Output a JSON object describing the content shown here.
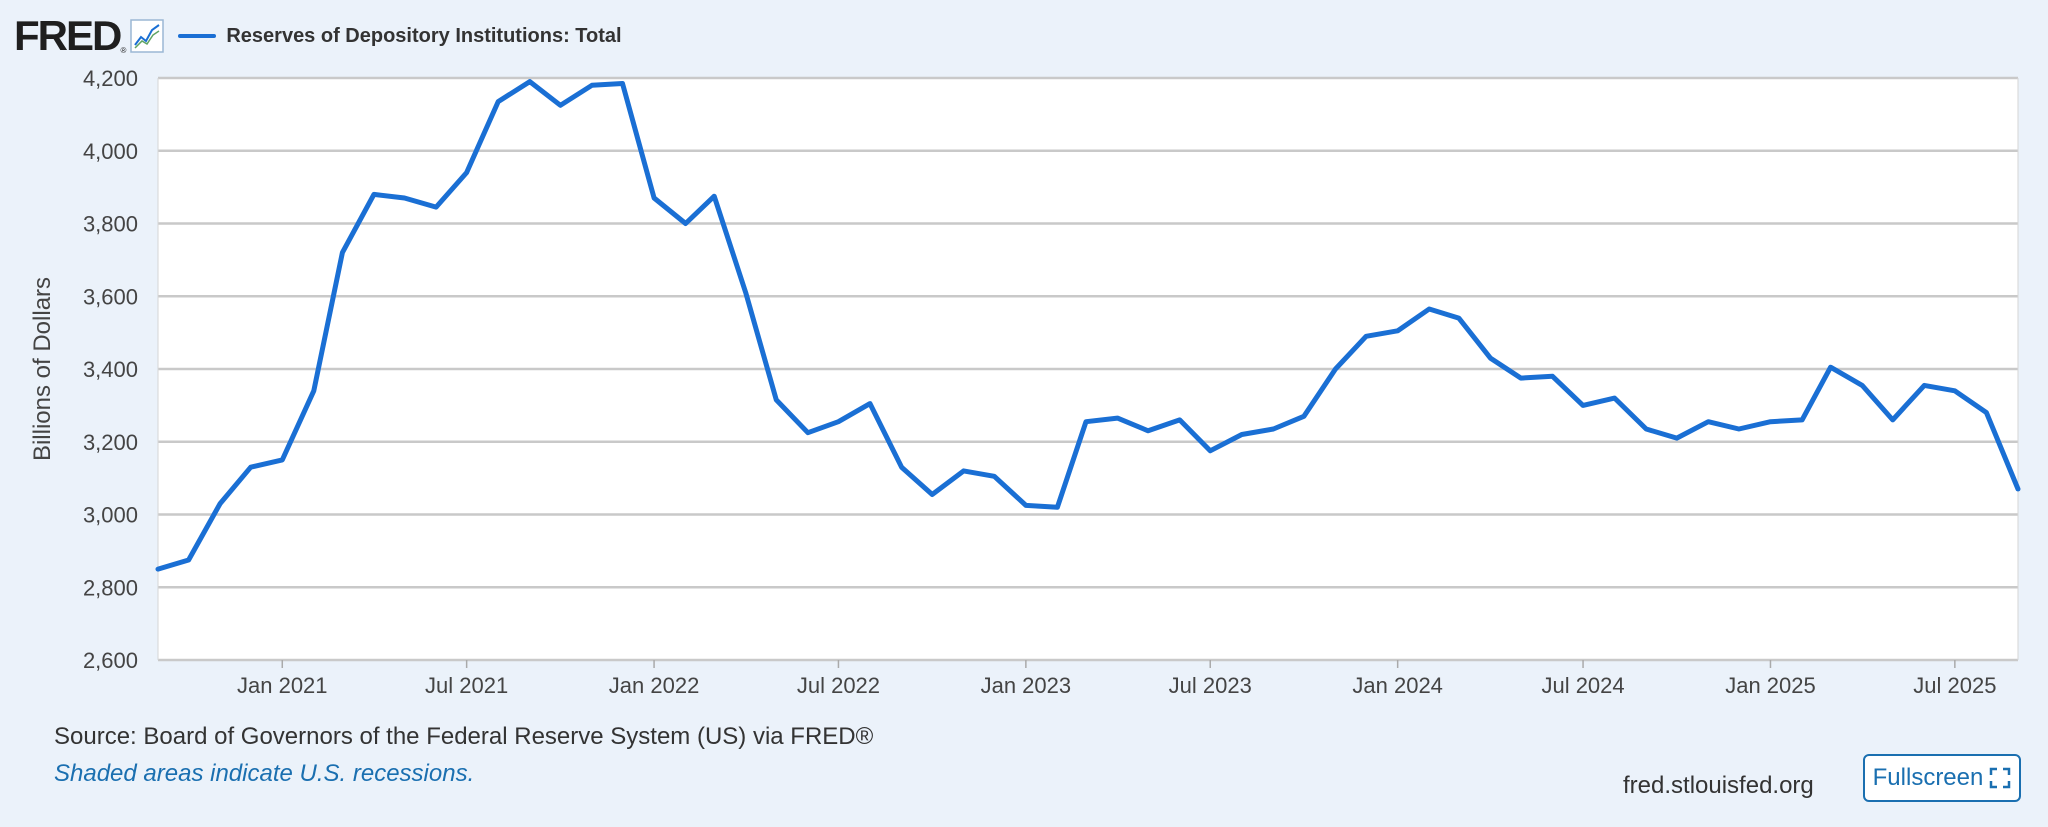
{
  "header": {
    "logo_text": "FRED",
    "logo_reg": "®",
    "graph_icon": "line-chart-icon",
    "legend_label": "Reserves of Depository Institutions: Total",
    "series_color": "#1a6fd4"
  },
  "footer": {
    "source": "Source: Board of Governors of the Federal Reserve System (US) via FRED®",
    "recession_note": "Shaded areas indicate U.S. recessions.",
    "site": "fred.stlouisfed.org",
    "fullscreen_label": "Fullscreen",
    "fullscreen_icon": "expand-icon"
  },
  "chart_data": {
    "type": "line",
    "ylabel": "Billions of Dollars",
    "ylim": [
      2600,
      4200
    ],
    "yticks": [
      2600,
      2800,
      3000,
      3200,
      3400,
      3600,
      3800,
      4000,
      4200
    ],
    "ytick_labels": [
      "2,600",
      "2,800",
      "3,000",
      "3,200",
      "3,400",
      "3,600",
      "3,800",
      "4,000",
      "4,200"
    ],
    "xlim": [
      "2020-09-01",
      "2025-09-01"
    ],
    "xticks": [
      {
        "date": "2021-01-01",
        "label": "Jan 2021"
      },
      {
        "date": "2021-07-01",
        "label": "Jul 2021"
      },
      {
        "date": "2022-01-01",
        "label": "Jan 2022"
      },
      {
        "date": "2022-07-01",
        "label": "Jul 2022"
      },
      {
        "date": "2023-01-01",
        "label": "Jan 2023"
      },
      {
        "date": "2023-07-01",
        "label": "Jul 2023"
      },
      {
        "date": "2024-01-01",
        "label": "Jan 2024"
      },
      {
        "date": "2024-07-01",
        "label": "Jul 2024"
      },
      {
        "date": "2025-01-01",
        "label": "Jan 2025"
      },
      {
        "date": "2025-07-01",
        "label": "Jul 2025"
      }
    ],
    "grid": true,
    "series": [
      {
        "name": "Reserves of Depository Institutions: Total",
        "color": "#1a6fd4",
        "x": [
          "2020-09-01",
          "2020-10-01",
          "2020-11-01",
          "2020-12-01",
          "2021-01-01",
          "2021-02-01",
          "2021-03-01",
          "2021-04-01",
          "2021-05-01",
          "2021-06-01",
          "2021-07-01",
          "2021-08-01",
          "2021-09-01",
          "2021-10-01",
          "2021-11-01",
          "2021-12-01",
          "2022-01-01",
          "2022-02-01",
          "2022-03-01",
          "2022-04-01",
          "2022-05-01",
          "2022-06-01",
          "2022-07-01",
          "2022-08-01",
          "2022-09-01",
          "2022-10-01",
          "2022-11-01",
          "2022-12-01",
          "2023-01-01",
          "2023-02-01",
          "2023-03-01",
          "2023-04-01",
          "2023-05-01",
          "2023-06-01",
          "2023-07-01",
          "2023-08-01",
          "2023-09-01",
          "2023-10-01",
          "2023-11-01",
          "2023-12-01",
          "2024-01-01",
          "2024-02-01",
          "2024-03-01",
          "2024-04-01",
          "2024-05-01",
          "2024-06-01",
          "2024-07-01",
          "2024-08-01",
          "2024-09-01",
          "2024-10-01",
          "2024-11-01",
          "2024-12-01",
          "2025-01-01",
          "2025-02-01",
          "2025-03-01",
          "2025-04-01",
          "2025-05-01",
          "2025-06-01",
          "2025-07-01",
          "2025-08-01",
          "2025-09-01"
        ],
        "values": [
          2850,
          2875,
          3030,
          3130,
          3150,
          3340,
          3720,
          3880,
          3870,
          3845,
          3940,
          4135,
          4190,
          4125,
          4180,
          4185,
          3870,
          3800,
          3875,
          3610,
          3315,
          3225,
          3255,
          3305,
          3130,
          3055,
          3120,
          3105,
          3025,
          3020,
          3255,
          3265,
          3230,
          3260,
          3175,
          3220,
          3235,
          3270,
          3400,
          3490,
          3505,
          3565,
          3540,
          3430,
          3375,
          3380,
          3300,
          3320,
          3235,
          3210,
          3255,
          3235,
          3255,
          3260,
          3405,
          3355,
          3260,
          3355,
          3340,
          3280,
          3070
        ]
      }
    ]
  }
}
